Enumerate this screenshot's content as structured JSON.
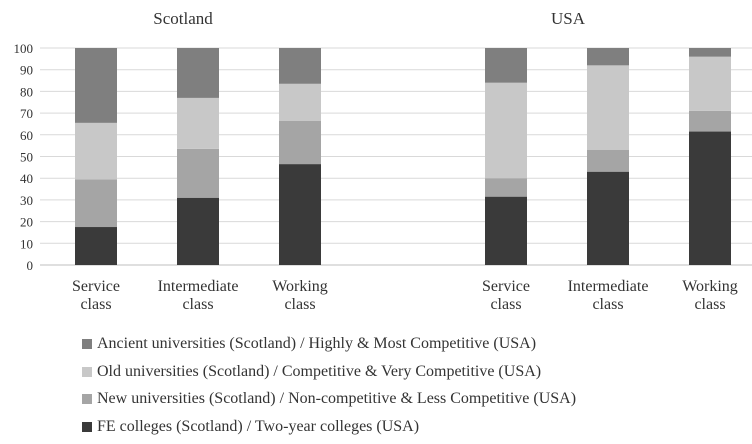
{
  "chart_data": {
    "type": "bar",
    "stacked": true,
    "ylim": [
      0,
      100
    ],
    "yticks": [
      0,
      10,
      20,
      30,
      40,
      50,
      60,
      70,
      80,
      90,
      100
    ],
    "grid": true,
    "legend_position": "bottom",
    "panels": [
      {
        "title": "Scotland",
        "categories": [
          [
            "Service",
            "class"
          ],
          [
            "Intermediate",
            "class"
          ],
          [
            "Working",
            "class"
          ]
        ],
        "series": [
          {
            "key": "fe",
            "values": [
              17.5,
              31,
              46.5
            ]
          },
          {
            "key": "new",
            "values": [
              22,
              22.5,
              20
            ]
          },
          {
            "key": "old",
            "values": [
              26,
              23.5,
              17
            ]
          },
          {
            "key": "ancient",
            "values": [
              34.5,
              23,
              16.5
            ]
          }
        ]
      },
      {
        "title": "USA",
        "categories": [
          [
            "Service",
            "class"
          ],
          [
            "Intermediate",
            "class"
          ],
          [
            "Working",
            "class"
          ]
        ],
        "series": [
          {
            "key": "fe",
            "values": [
              31.5,
              43,
              61.5
            ]
          },
          {
            "key": "new",
            "values": [
              8.5,
              10,
              9.5
            ]
          },
          {
            "key": "old",
            "values": [
              44,
              39,
              25
            ]
          },
          {
            "key": "ancient",
            "values": [
              16,
              8,
              4
            ]
          }
        ]
      }
    ],
    "legend": [
      {
        "key": "ancient",
        "name": "Ancient universities (Scotland) / Highly & Most Competitive (USA)",
        "color": "#7f7f7f"
      },
      {
        "key": "old",
        "name": "Old universities (Scotland) / Competitive & Very Competitive (USA)",
        "color": "#c8c8c8"
      },
      {
        "key": "new",
        "name": "New universities (Scotland) / Non-competitive & Less Competitive (USA)",
        "color": "#a5a5a5"
      },
      {
        "key": "fe",
        "name": "FE colleges (Scotland) / Two-year colleges (USA)",
        "color": "#3a3a3a"
      }
    ]
  }
}
